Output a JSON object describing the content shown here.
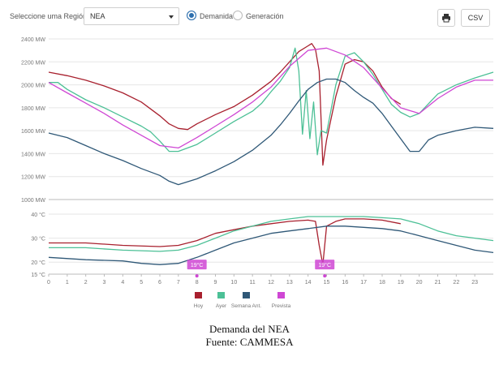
{
  "toolbar": {
    "region_label": "Seleccione uma Región",
    "region_value": "NEA",
    "radio_demand": "Demanida",
    "radio_generation": "Generación",
    "print_icon": "printer-icon",
    "csv_label": "CSV"
  },
  "caption": {
    "line1": "Demanda del NEA",
    "line2": "Fuente: CAMMESA"
  },
  "colors": {
    "hoy": "#a8202e",
    "ayer": "#4cc096",
    "semana": "#2f5877",
    "prevista": "#cf47d4"
  },
  "chart_data": [
    {
      "type": "line",
      "panel": "demand",
      "ylim": [
        1000,
        2400
      ],
      "yticks": [
        1000,
        1200,
        1400,
        1600,
        1800,
        2000,
        2200,
        2400
      ],
      "ytick_labels": [
        "1000 MW",
        "1200 MW",
        "1400 MW",
        "1600 MW",
        "1800 MW",
        "2000 MW",
        "2200 MW",
        "2400 MW"
      ],
      "xlim": [
        0,
        24
      ],
      "grid": true,
      "series": [
        {
          "name": "Hoy",
          "x": [
            0,
            1,
            2,
            3,
            4,
            5,
            5.5,
            6,
            6.5,
            7,
            7.5,
            8,
            9,
            10,
            11,
            12,
            12.5,
            13,
            13.5,
            14,
            14.2,
            14.4,
            14.6,
            14.7,
            14.8,
            15,
            15.5,
            16,
            16.5,
            17,
            17.5,
            18,
            18.5,
            19
          ],
          "values": [
            2110,
            2080,
            2040,
            1990,
            1930,
            1850,
            1790,
            1730,
            1660,
            1620,
            1610,
            1660,
            1740,
            1810,
            1910,
            2030,
            2110,
            2200,
            2290,
            2340,
            2360,
            2310,
            2120,
            1720,
            1300,
            1520,
            1900,
            2180,
            2220,
            2200,
            2120,
            1980,
            1880,
            1830
          ]
        },
        {
          "name": "Ayer",
          "x": [
            0,
            0.5,
            1,
            2,
            3,
            4,
            5,
            5.5,
            6,
            6.5,
            7,
            8,
            9,
            10,
            11,
            11.5,
            12,
            12.5,
            13,
            13.3,
            13.5,
            13.7,
            13.9,
            14.1,
            14.3,
            14.5,
            14.7,
            15,
            15.5,
            16,
            16.5,
            17,
            17.5,
            18,
            18.5,
            19,
            19.5,
            20,
            21,
            22,
            23,
            24
          ],
          "values": [
            2020,
            2020,
            1960,
            1870,
            1800,
            1720,
            1640,
            1590,
            1510,
            1420,
            1420,
            1480,
            1580,
            1680,
            1770,
            1840,
            1940,
            2030,
            2150,
            2320,
            2120,
            1570,
            1950,
            1530,
            1850,
            1390,
            1600,
            1580,
            2000,
            2250,
            2280,
            2200,
            2090,
            1960,
            1830,
            1760,
            1720,
            1750,
            1920,
            2000,
            2060,
            2110
          ]
        },
        {
          "name": "Semana Ant.",
          "x": [
            0,
            1,
            2,
            3,
            4,
            5,
            6,
            6.5,
            7,
            8,
            9,
            10,
            11,
            12,
            12.5,
            13,
            13.5,
            14,
            14.5,
            15,
            15.5,
            16,
            16.5,
            17,
            17.5,
            18,
            18.5,
            19,
            19.5,
            20,
            20.5,
            21,
            22,
            23,
            24
          ],
          "values": [
            1580,
            1540,
            1470,
            1400,
            1340,
            1270,
            1210,
            1160,
            1130,
            1180,
            1250,
            1330,
            1430,
            1560,
            1650,
            1750,
            1860,
            1960,
            2020,
            2050,
            2050,
            2020,
            1950,
            1890,
            1840,
            1750,
            1640,
            1530,
            1420,
            1420,
            1520,
            1560,
            1600,
            1630,
            1620
          ]
        },
        {
          "name": "Prevista",
          "x": [
            0,
            1,
            2,
            3,
            4,
            5,
            6,
            7,
            8,
            9,
            10,
            11,
            12,
            13,
            14,
            15,
            16,
            17,
            18,
            19,
            20,
            21,
            22,
            23,
            24
          ],
          "values": [
            2020,
            1930,
            1840,
            1750,
            1650,
            1560,
            1470,
            1450,
            1540,
            1640,
            1740,
            1850,
            1980,
            2160,
            2300,
            2320,
            2260,
            2150,
            1970,
            1800,
            1750,
            1880,
            1980,
            2040,
            2040
          ]
        }
      ]
    },
    {
      "type": "line",
      "panel": "temperature",
      "ylim": [
        15,
        40
      ],
      "yticks": [
        15,
        20,
        30,
        40
      ],
      "ytick_labels": [
        "15 °C",
        "20 °C",
        "30 °C",
        "40 °C"
      ],
      "xlim": [
        0,
        24
      ],
      "xticks": [
        0,
        1,
        2,
        3,
        4,
        5,
        6,
        7,
        8,
        9,
        10,
        11,
        12,
        13,
        14,
        15,
        16,
        17,
        18,
        19,
        20,
        21,
        22,
        23
      ],
      "xtick_labels": [
        "0",
        "1",
        "2",
        "3",
        "4",
        "5",
        "6",
        "7",
        "8",
        "9",
        "10",
        "11",
        "12",
        "13",
        "14",
        "15",
        "16",
        "17",
        "18",
        "19",
        "20",
        "21",
        "22",
        "23"
      ],
      "grid": true,
      "legend_placement": "bottom",
      "series": [
        {
          "name": "Hoy",
          "x": [
            0,
            2,
            4,
            6,
            7,
            8,
            9,
            10,
            11,
            12,
            13,
            14,
            14.4,
            14.6,
            14.8,
            15,
            15.5,
            16,
            17,
            18,
            19
          ],
          "values": [
            28,
            28,
            27,
            26.5,
            27,
            29,
            32,
            33.5,
            35,
            36,
            37,
            37.5,
            37,
            27,
            19,
            35,
            37,
            38,
            38,
            37.5,
            36
          ]
        },
        {
          "name": "Ayer",
          "x": [
            0,
            2,
            4,
            6,
            7,
            8,
            9,
            10,
            11,
            12,
            13,
            14,
            15,
            16,
            17,
            18,
            19,
            20,
            21,
            22,
            23,
            24
          ],
          "values": [
            26,
            26,
            25,
            24.5,
            25,
            27,
            30,
            33,
            35,
            37,
            38,
            39,
            39,
            39,
            39,
            38.5,
            38,
            36,
            33,
            31,
            30,
            29
          ]
        },
        {
          "name": "Semana Ant.",
          "x": [
            0,
            2,
            4,
            5,
            6,
            7,
            8,
            9,
            10,
            11,
            12,
            13,
            14,
            15,
            16,
            17,
            18,
            19,
            20,
            21,
            22,
            23,
            24
          ],
          "values": [
            22,
            21,
            20.5,
            19.5,
            19,
            19.5,
            22,
            25,
            28,
            30,
            32,
            33,
            34,
            35,
            35,
            34.5,
            34,
            33,
            31,
            29,
            27,
            25,
            24
          ]
        }
      ],
      "annotations": [
        {
          "label": "19°C",
          "x": 8,
          "y": 19
        },
        {
          "label": "19°C",
          "x": 14.9,
          "y": 19
        }
      ]
    }
  ]
}
